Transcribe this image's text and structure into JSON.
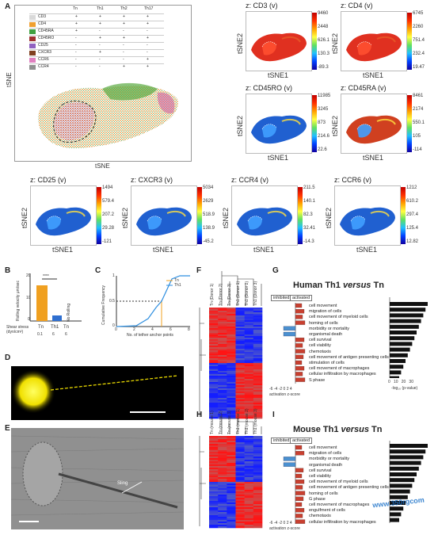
{
  "panels": {
    "A": {
      "label": "A",
      "axis_x": "tSNE",
      "axis_y": "tSNE",
      "table": {
        "columns": [
          "Tn",
          "Th1",
          "Th2",
          "Th17"
        ],
        "rows": [
          {
            "marker": "CD3",
            "color": "#d9d9d9",
            "vals": [
              "+",
              "+",
              "+",
              "+"
            ]
          },
          {
            "marker": "CD4",
            "color": "#f0a030",
            "vals": [
              "+",
              "+",
              "+",
              "+"
            ]
          },
          {
            "marker": "CD45RA",
            "color": "#40a040",
            "vals": [
              "+",
              "-",
              "-",
              "-"
            ]
          },
          {
            "marker": "CD45RO",
            "color": "#a03030",
            "vals": [
              "-",
              "+",
              "+",
              "+"
            ]
          },
          {
            "marker": "CD25",
            "color": "#9060c0",
            "vals": [
              "-",
              "-",
              "-",
              "-"
            ]
          },
          {
            "marker": "CXCR3",
            "color": "#804020",
            "vals": [
              "-",
              "+",
              "-",
              "-"
            ]
          },
          {
            "marker": "CCR6",
            "color": "#e080c0",
            "vals": [
              "-",
              "-",
              "-",
              "+"
            ]
          },
          {
            "marker": "CCR4",
            "color": "#909090",
            "vals": [
              "-",
              "-",
              "+",
              "+"
            ]
          }
        ]
      },
      "heatmaps": [
        {
          "title": "z: CD3  (v)",
          "ticks": [
            "9460",
            "2448",
            "626.1",
            "130.3",
            "-89.3"
          ]
        },
        {
          "title": "z: CD4  (v)",
          "ticks": [
            "6745",
            "2260",
            "751.4",
            "232.4",
            "19.47"
          ]
        },
        {
          "title": "z: CD45RO  (v)",
          "ticks": [
            "11985",
            "3245",
            "873",
            "214.6",
            "22.6"
          ]
        },
        {
          "title": "z: CD45RA  (v)",
          "ticks": [
            "8461",
            "2174",
            "550.1",
            "105",
            "-114"
          ]
        },
        {
          "title": "z: CD25  (v)",
          "ticks": [
            "1494",
            "579.4",
            "207.2",
            "29.28",
            "-121"
          ]
        },
        {
          "title": "z: CXCR3  (v)",
          "ticks": [
            "5034",
            "2629",
            "518.9",
            "138.9",
            "-45.2"
          ]
        },
        {
          "title": "z: CCR4  (v)",
          "ticks": [
            "211.5",
            "140.1",
            "82.3",
            "32.41",
            "-14.3"
          ]
        },
        {
          "title": "z: CCR6  (v)",
          "ticks": [
            "1212",
            "610.2",
            "297.4",
            "125.4",
            "12.82"
          ]
        }
      ],
      "heat_xlabel": "tSNE1",
      "heat_ylabel": "tSNE2"
    },
    "B": {
      "label": "B",
      "ylabel": "Rolling velocity\nμm/sec",
      "stars": "****",
      "no_rolling": "No Rolling",
      "row1_label": "Shear stress\n(dyn/cm²)",
      "cats": [
        "Tn",
        "Th1",
        "Tn"
      ],
      "shear": [
        "0.1",
        "6",
        "6"
      ],
      "y_ticks": [
        "20",
        "10",
        "0"
      ]
    },
    "C": {
      "label": "C",
      "ylabel": "Cumulative Frequency",
      "xlabel": "No. of tether anchor points",
      "legend": [
        "Tn",
        "Th1"
      ],
      "y_ticks": [
        "1",
        "0.5",
        "0"
      ],
      "x_ticks": [
        "0",
        "2",
        "4",
        "6",
        "8"
      ]
    },
    "D": {
      "label": "D"
    },
    "E": {
      "label": "E",
      "annotation": "Sling"
    },
    "F": {
      "label": "F",
      "columns": [
        "Tn (Donor 1)",
        "Tn (Donor 2)",
        "Tn (Donor 3)",
        "Th1 (Donor 1)",
        "Th1 (Donor 2)",
        "Th1 (Donor 3)"
      ]
    },
    "G": {
      "label": "G",
      "title_prefix": "Human Th1 ",
      "title_versus": "versus",
      "title_suffix": " Tn",
      "inhibited": "inhibited",
      "activated": "activated",
      "zlabel": "activation z-score",
      "z_ticks": [
        "-6",
        "-4",
        "-2",
        "0",
        "2",
        "4"
      ],
      "plabel": "-log₁₀ (p-value)",
      "p_ticks": [
        "0",
        "10",
        "20",
        "30"
      ],
      "functions": [
        "cell movement",
        "migration of cells",
        "cell movement of myeloid cells",
        "homing of cells",
        "morbidity or mortality",
        "organismal death",
        "cell survival",
        "cell viability",
        "chemotaxis",
        "cell movement of antigen presenting cells",
        "stimulation of cells",
        "cell movement of macrophages",
        "cellular infiltration by macrophages",
        "S phase"
      ]
    },
    "H": {
      "label": "H",
      "columns": [
        "Tn (mouse 1)",
        "Tn (mouse 2)",
        "Tn (mouse 3)",
        "Th1 (mouse 1)",
        "Th1 (mouse 2)",
        "Th1 (mouse 3)"
      ]
    },
    "I": {
      "label": "I",
      "title_prefix": "Mouse Th1 ",
      "title_versus": "versus",
      "title_suffix": " Tn",
      "inhibited": "inhibited",
      "activated": "activated",
      "zlabel": "activation z-score",
      "z_ticks": [
        "-6",
        "-4",
        "-2",
        "0",
        "2",
        "4"
      ],
      "functions": [
        "cell movement",
        "migration of cells",
        "morbidity or mortality",
        "organismal death",
        "cell survival",
        "cell viability",
        "cell movement of myeloid cells",
        "cell movement of antigen presenting cells",
        "homing of cells",
        "G phase",
        "cell movement of macrophages",
        "engulfment of cells",
        "chemotaxis",
        "cellular infiltration by macrophages"
      ]
    }
  },
  "watermark": "www.350rgcom"
}
